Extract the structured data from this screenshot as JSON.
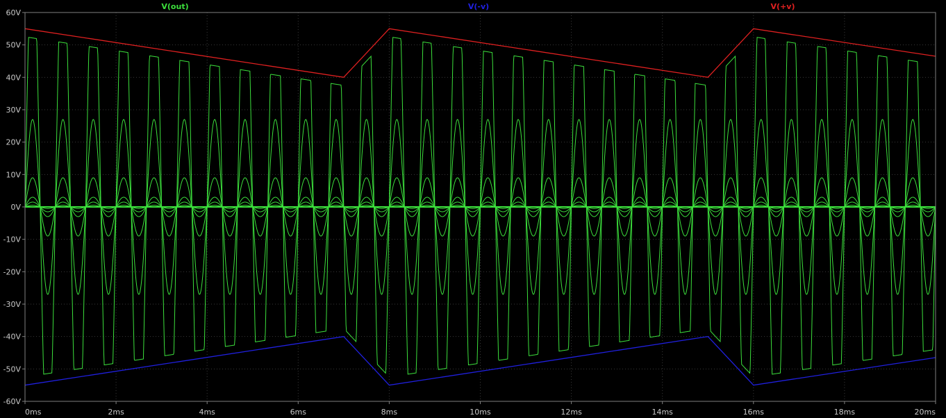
{
  "chart_data": {
    "type": "line",
    "title": "",
    "xlabel": "",
    "ylabel": "",
    "xlim": [
      0,
      20
    ],
    "ylim": [
      -60,
      60
    ],
    "x_unit": "ms",
    "y_unit": "V",
    "x_ticks": [
      "0ms",
      "2ms",
      "4ms",
      "6ms",
      "8ms",
      "10ms",
      "12ms",
      "14ms",
      "16ms",
      "18ms",
      "20ms"
    ],
    "y_ticks": [
      "60V",
      "50V",
      "40V",
      "30V",
      "20V",
      "10V",
      "0V",
      "-10V",
      "-20V",
      "-30V",
      "-40V",
      "-50V",
      "-60V"
    ],
    "grid": true,
    "legend_placement": "top",
    "background": "#000000",
    "axis_color": "#808080",
    "series": [
      {
        "name": "V(out)",
        "color": "#3ce03c",
        "kind": "stepped sine family",
        "frequency_khz": 1.5,
        "amplitudes_v": [
          0.5,
          1.5,
          3,
          9,
          27
        ],
        "clipped_trace": {
          "clip_margin_v": 2.5,
          "positive_peaks_v": [
            52.5,
            50.5,
            48.5,
            46.5,
            44.5,
            42.5,
            40.5,
            43.5,
            52.5,
            50.5,
            48.5,
            46.5,
            44.5,
            42.5,
            40.5,
            43.5,
            52.5,
            50.5,
            48.5,
            46.5
          ],
          "negative_peaks_v": [
            -51,
            -49,
            -47,
            -45,
            -43,
            -41,
            -39,
            -50,
            -51,
            -49,
            -47,
            -45,
            -43,
            -41,
            -39,
            -50,
            -51,
            -49,
            -47,
            -45
          ]
        }
      },
      {
        "name": "V(-v)",
        "color": "#2020e0",
        "x": [
          0,
          7,
          8,
          15,
          16,
          20
        ],
        "values": [
          -55,
          -40,
          -55,
          -40,
          -55,
          -46.5
        ]
      },
      {
        "name": "V(+v)",
        "color": "#e02020",
        "x": [
          0,
          7,
          8,
          15,
          16,
          20
        ],
        "values": [
          55,
          40,
          55,
          40,
          55,
          46.5
        ]
      }
    ]
  }
}
